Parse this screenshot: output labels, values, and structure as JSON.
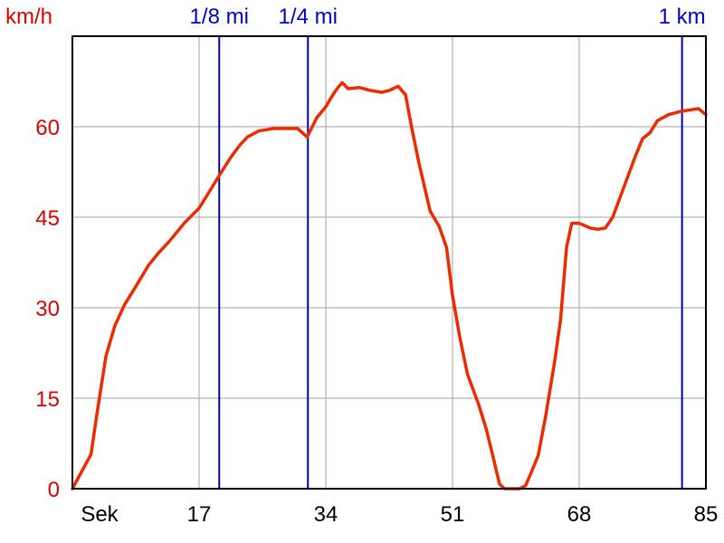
{
  "chart_data": {
    "type": "line",
    "ylabel": "km/h",
    "xlabel": "Sek",
    "xlim": [
      0,
      85
    ],
    "ylim": [
      0,
      75
    ],
    "x_ticks": [
      17,
      34,
      51,
      68,
      85
    ],
    "y_ticks": [
      0,
      15,
      30,
      45,
      60
    ],
    "grid": true,
    "colors": {
      "series": "#ee2a00",
      "markers": "#0000cc",
      "y_text": "#e00000",
      "grid": "#a0a0a0",
      "axis": "#000000"
    },
    "distance_markers": [
      {
        "label": "1/8 mi",
        "x": 19.7
      },
      {
        "label": "1/4 mi",
        "x": 31.6
      },
      {
        "label": "1 km",
        "x": 81.8
      }
    ],
    "series": [
      {
        "x": [
          0,
          2.5,
          3.3,
          4.5,
          5.7,
          7.0,
          8.5,
          10.2,
          11.5,
          13.0,
          15.0,
          17.0,
          18.5,
          20.0,
          21.3,
          22.5,
          23.5,
          25.0,
          27.0,
          28.5,
          29.5,
          30.2,
          31.5,
          32.8,
          34.0,
          34.8,
          35.5,
          36.2,
          37.0,
          38.5,
          40.0,
          41.5,
          42.5,
          43.7,
          44.7,
          45.5,
          46.5,
          48.0,
          49.2,
          50.2,
          51.0,
          52.0,
          53.0,
          54.5,
          55.5,
          56.5,
          57.3,
          58.0,
          59.0,
          60.0,
          60.8,
          61.5,
          62.5,
          63.5,
          64.7,
          65.5,
          66.3,
          67.0,
          68.0,
          69.5,
          70.5,
          71.5,
          72.5,
          74.0,
          75.5,
          76.5,
          77.5,
          78.5,
          80.0,
          81.5,
          83.0,
          84.0,
          85.0
        ],
        "y": [
          0,
          5.7,
          12.5,
          22.0,
          27.0,
          30.5,
          33.5,
          37.0,
          39.0,
          41.0,
          44.0,
          46.5,
          49.5,
          52.5,
          55.0,
          57.0,
          58.3,
          59.3,
          59.7,
          59.7,
          59.7,
          59.7,
          58.3,
          61.5,
          63.3,
          65.0,
          66.3,
          67.3,
          66.3,
          66.5,
          66.0,
          65.7,
          66.0,
          66.7,
          65.3,
          60.0,
          54.0,
          46.0,
          43.5,
          40.0,
          32.0,
          25.0,
          19.0,
          14.0,
          10.0,
          5.0,
          0.8,
          0.0,
          0.0,
          0.0,
          0.5,
          2.5,
          5.5,
          12.0,
          21.0,
          28.0,
          40.0,
          44.0,
          44.0,
          43.2,
          43.0,
          43.2,
          45.0,
          50.0,
          55.0,
          58.0,
          59.0,
          61.0,
          62.0,
          62.5,
          62.8,
          63.0,
          62.0
        ]
      }
    ]
  }
}
